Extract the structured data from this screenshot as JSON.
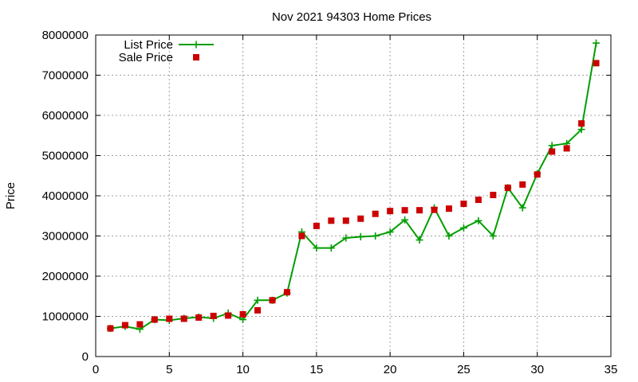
{
  "chart_data": {
    "type": "line",
    "title": "Nov 2021 94303 Home Prices",
    "xlabel": "",
    "ylabel": "Price",
    "xlim": [
      0,
      35
    ],
    "ylim": [
      0,
      8000000
    ],
    "xticks": [
      0,
      5,
      10,
      15,
      20,
      25,
      30,
      35
    ],
    "yticks": [
      0,
      1000000,
      2000000,
      3000000,
      4000000,
      5000000,
      6000000,
      7000000,
      8000000
    ],
    "xtick_labels": [
      "0",
      "5",
      "10",
      "15",
      "20",
      "25",
      "30",
      "35"
    ],
    "ytick_labels": [
      "0",
      "1000000",
      "2000000",
      "3000000",
      "4000000",
      "5000000",
      "6000000",
      "7000000",
      "8000000"
    ],
    "grid": true,
    "legend_position": "top-left",
    "series": [
      {
        "name": "List Price",
        "style": "line-with-plus-markers",
        "color": "#009e00",
        "x": [
          1,
          2,
          3,
          4,
          5,
          6,
          7,
          8,
          9,
          10,
          11,
          12,
          13,
          14,
          15,
          16,
          17,
          18,
          19,
          20,
          21,
          22,
          23,
          24,
          25,
          26,
          27,
          28,
          29,
          30,
          31,
          32,
          33,
          34
        ],
        "values": [
          700000,
          750000,
          680000,
          920000,
          900000,
          950000,
          980000,
          950000,
          1080000,
          920000,
          1400000,
          1400000,
          1580000,
          3100000,
          2700000,
          2700000,
          2950000,
          2980000,
          3000000,
          3100000,
          3400000,
          2900000,
          3700000,
          3000000,
          3200000,
          3380000,
          3000000,
          4200000,
          3700000,
          4550000,
          5250000,
          5300000,
          5650000,
          7800000
        ]
      },
      {
        "name": "Sale Price",
        "style": "square-markers",
        "color": "#cc0000",
        "x": [
          1,
          2,
          3,
          4,
          5,
          6,
          7,
          8,
          9,
          10,
          11,
          12,
          13,
          14,
          15,
          16,
          17,
          18,
          19,
          20,
          21,
          22,
          23,
          24,
          25,
          26,
          27,
          28,
          29,
          30,
          31,
          32,
          33,
          34
        ],
        "values": [
          700000,
          780000,
          800000,
          920000,
          940000,
          940000,
          970000,
          1010000,
          1020000,
          1050000,
          1150000,
          1400000,
          1600000,
          3000000,
          3250000,
          3380000,
          3380000,
          3430000,
          3550000,
          3620000,
          3640000,
          3640000,
          3650000,
          3680000,
          3800000,
          3900000,
          4020000,
          4200000,
          4280000,
          4530000,
          5100000,
          5180000,
          5800000,
          7300000
        ]
      }
    ]
  }
}
